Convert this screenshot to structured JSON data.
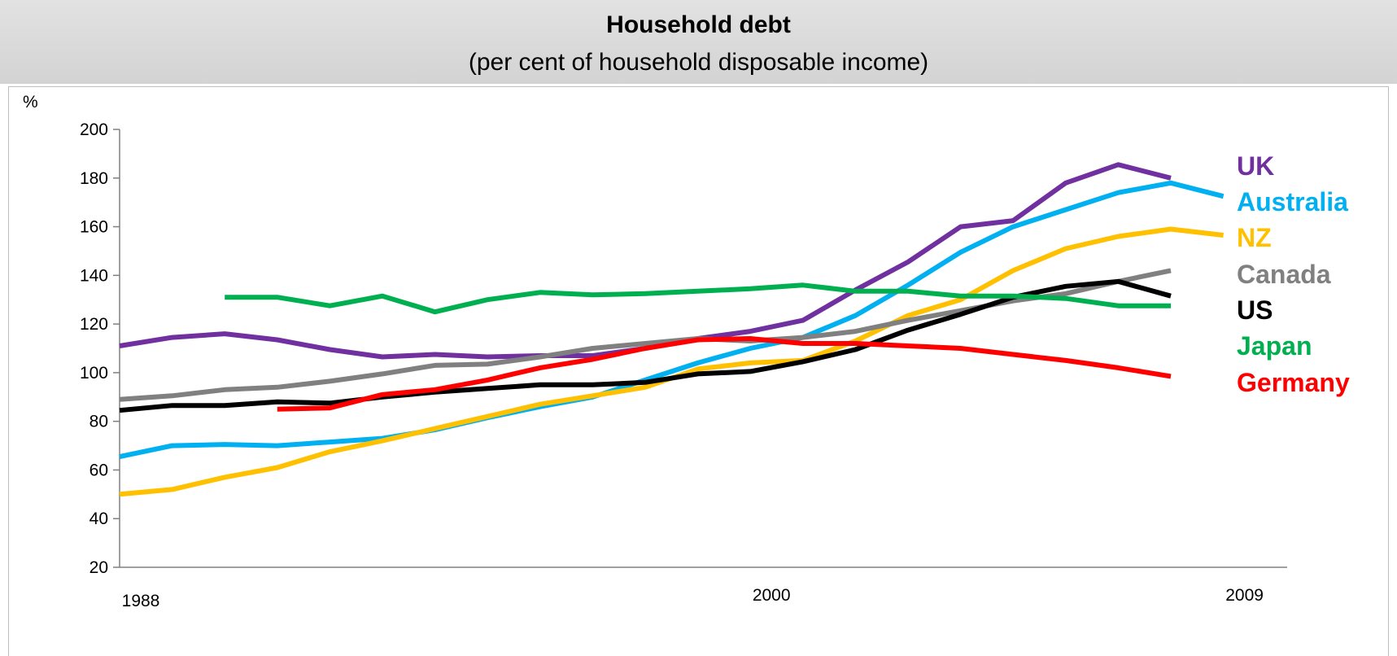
{
  "chart_data": {
    "type": "line",
    "title": "Household debt",
    "subtitle": "(per cent of household disposable income)",
    "ylabel": "%",
    "xlabel": "",
    "ylim": [
      20,
      200
    ],
    "yticks": [
      20,
      40,
      60,
      80,
      100,
      120,
      140,
      160,
      180,
      200
    ],
    "xlim": [
      1988,
      2010.5
    ],
    "xtick_labels": [
      "1988",
      "2000",
      "2009"
    ],
    "x_label_positions": [
      1988,
      2000,
      2009
    ],
    "x": [
      1988,
      1989,
      1990,
      1991,
      1992,
      1993,
      1994,
      1995,
      1996,
      1997,
      1998,
      1999,
      2000,
      2001,
      2002,
      2003,
      2004,
      2005,
      2006,
      2007,
      2008,
      2009,
      2010
    ],
    "grid": false,
    "legend_placement": "right",
    "series": [
      {
        "name": "UK",
        "color": "#7030a0",
        "values": [
          111,
          114.5,
          116,
          113.5,
          109.5,
          106.5,
          107.5,
          106.5,
          107,
          107,
          110,
          114,
          117,
          121.5,
          134,
          145.5,
          160,
          162.5,
          178,
          185.5,
          180,
          null,
          null
        ]
      },
      {
        "name": "Australia",
        "color": "#00b0f0",
        "values": [
          65.5,
          70,
          70.5,
          70,
          71.5,
          73,
          76.5,
          81.5,
          86,
          90,
          97,
          104,
          110,
          114.5,
          123.5,
          136,
          149.5,
          160,
          167,
          174,
          178,
          172.5,
          null
        ]
      },
      {
        "name": "NZ",
        "color": "#ffc000",
        "values": [
          50,
          52,
          57,
          61,
          67.5,
          72,
          77,
          82,
          87,
          90.5,
          94,
          101.5,
          104,
          105,
          113,
          123.5,
          130,
          142,
          151,
          156,
          159,
          156.5,
          null
        ]
      },
      {
        "name": "Canada",
        "color": "#808080",
        "values": [
          89,
          90.5,
          93,
          94,
          96.5,
          99.5,
          103,
          103.5,
          106.5,
          110,
          112,
          114,
          113,
          114.5,
          117,
          121.5,
          125.5,
          129.5,
          132.5,
          137.5,
          142,
          null,
          null
        ]
      },
      {
        "name": "US",
        "color": "#000000",
        "values": [
          84.5,
          86.5,
          86.5,
          88,
          87.5,
          90,
          92,
          93.5,
          95,
          95,
          96,
          99.5,
          100.5,
          104.5,
          109.5,
          117.5,
          124,
          131,
          135.5,
          137.5,
          131.5,
          null,
          null
        ]
      },
      {
        "name": "Japan",
        "color": "#00b050",
        "values": [
          null,
          null,
          131,
          131,
          127.5,
          131.5,
          125,
          130,
          133,
          132,
          132.5,
          133.5,
          134.5,
          136,
          133.5,
          133.5,
          131.5,
          131.5,
          130.5,
          127.5,
          127.5,
          null,
          null
        ]
      },
      {
        "name": "Germany",
        "color": "#ff0000",
        "values": [
          null,
          null,
          null,
          85,
          85.5,
          91,
          93,
          97,
          102,
          105.5,
          110,
          113.5,
          114,
          112,
          112,
          111,
          110,
          107.5,
          105,
          102,
          98.5,
          null,
          null
        ]
      }
    ]
  }
}
